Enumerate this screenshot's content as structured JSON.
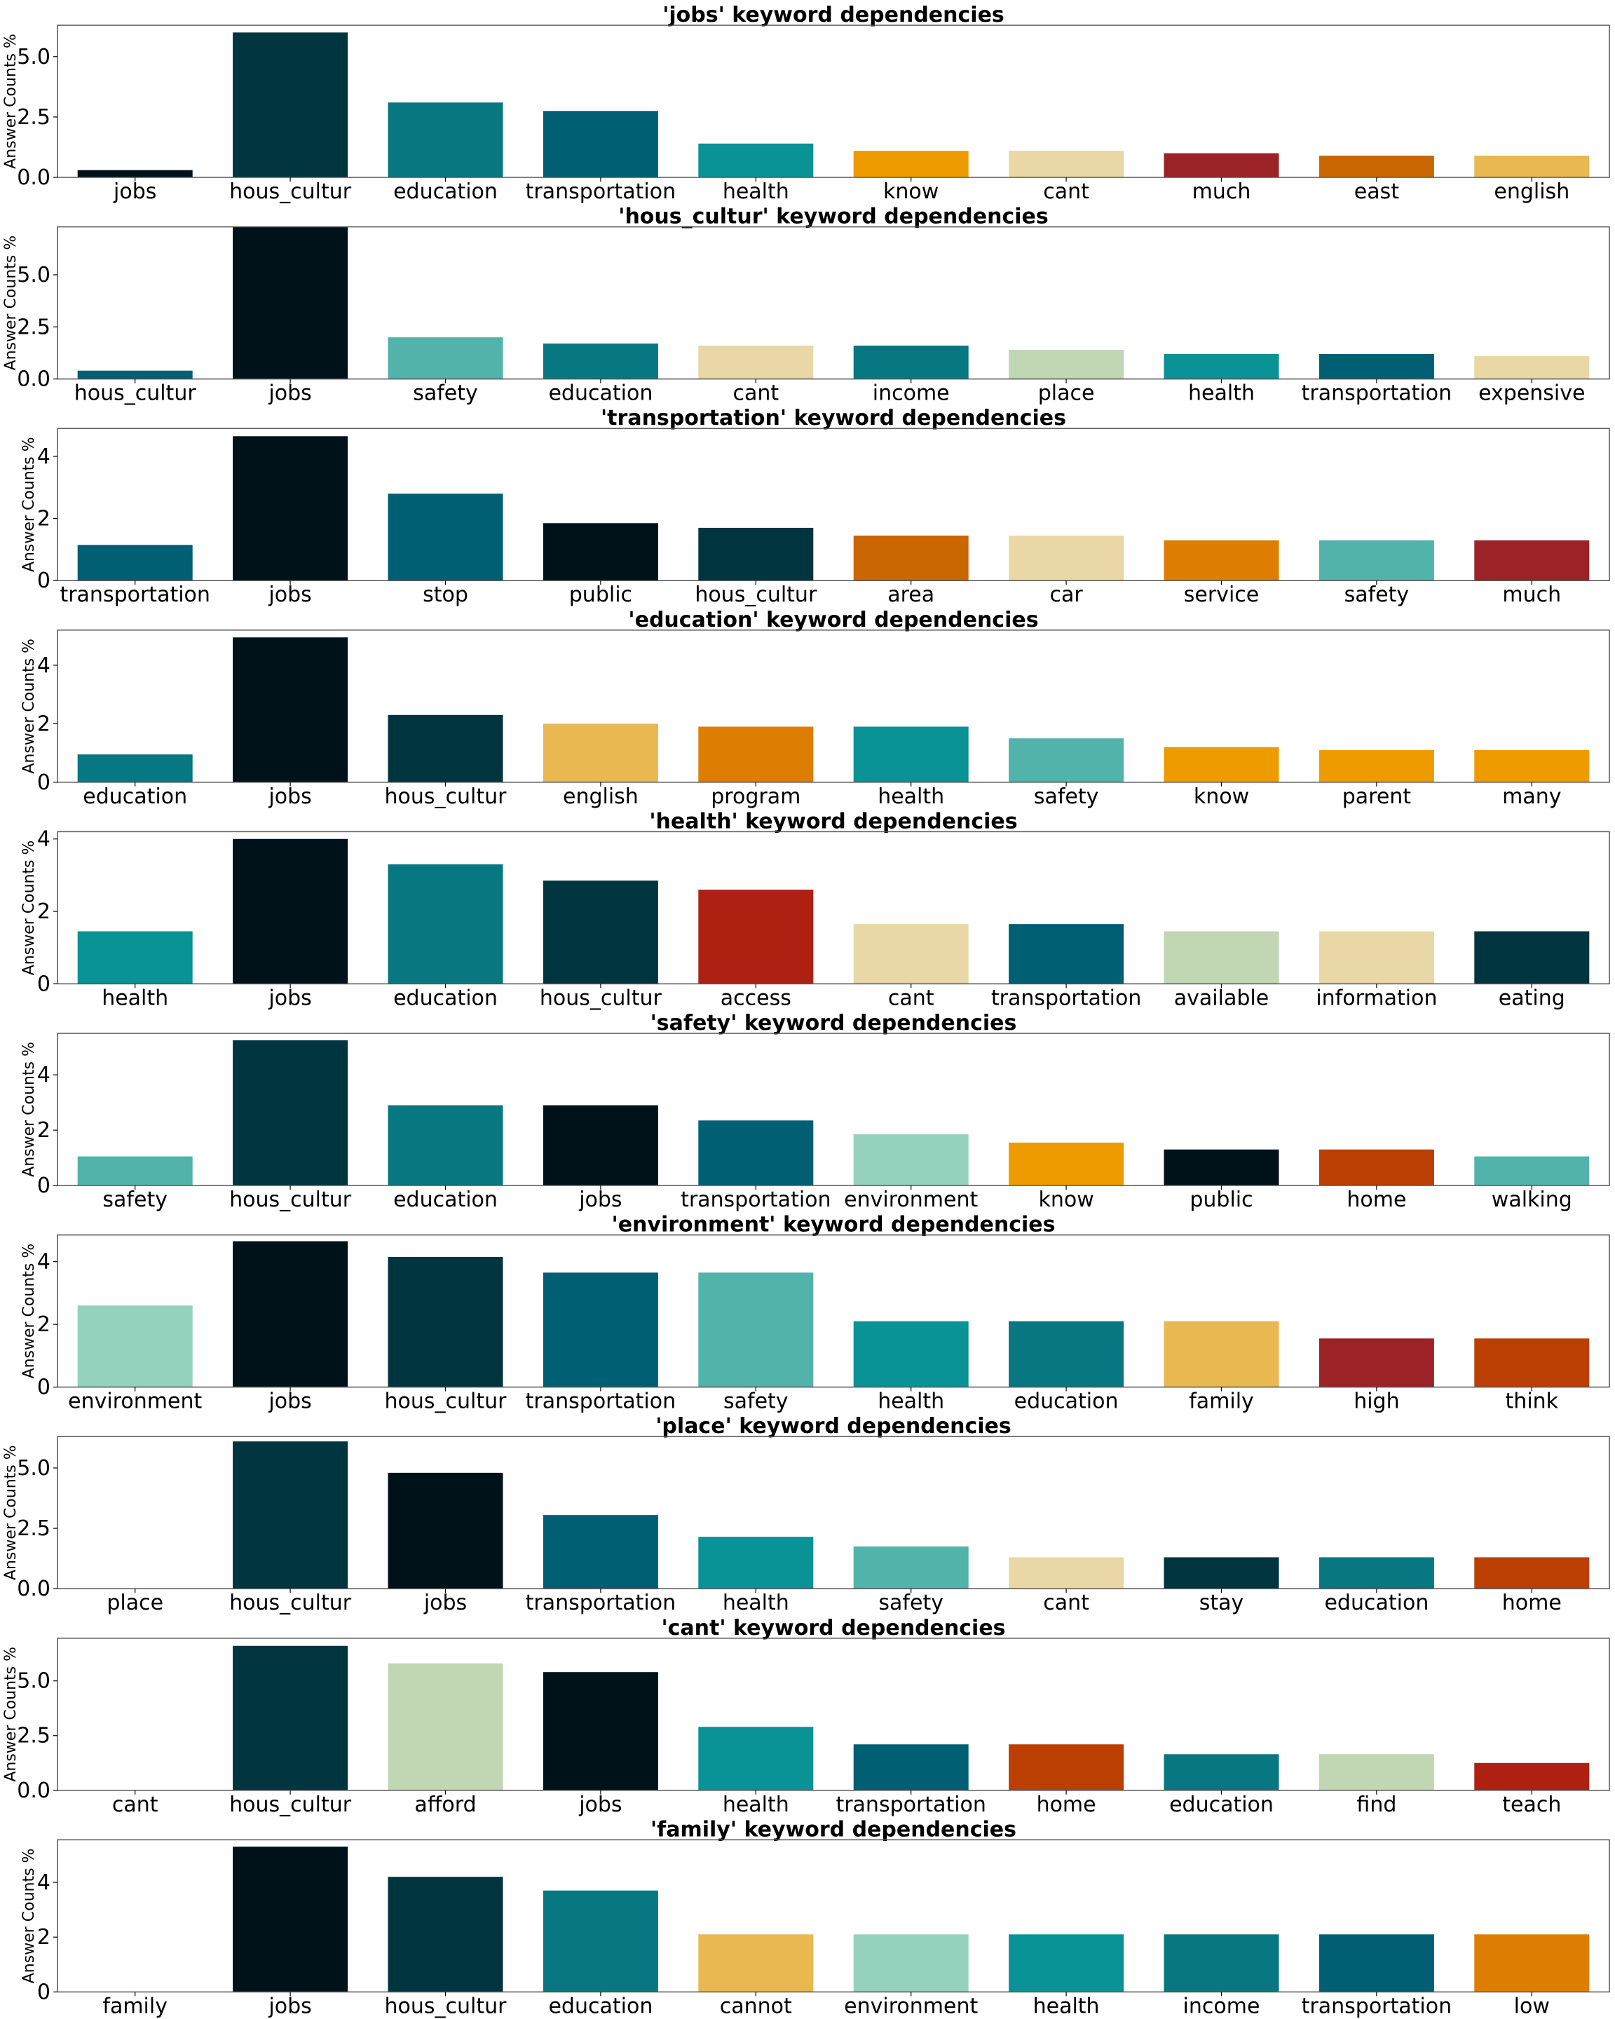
{
  "ylabel": "Answer Counts %",
  "chart_data": [
    {
      "type": "bar",
      "title": "'jobs' keyword dependencies",
      "ylabel": "Answer Counts %",
      "ylim": [
        0,
        6.3
      ],
      "yticks": [
        0.0,
        2.5,
        5.0
      ],
      "ytick_labels": [
        "0.0",
        "2.5",
        "5.0"
      ],
      "categories": [
        "jobs",
        "hous_cultur",
        "education",
        "transportation",
        "health",
        "know",
        "cant",
        "much",
        "east",
        "english"
      ],
      "values": [
        0.3,
        6.0,
        3.1,
        2.75,
        1.4,
        1.1,
        1.1,
        1.0,
        0.9,
        0.9
      ],
      "colors": [
        "#001219",
        "#003540",
        "#077782",
        "#005f73",
        "#0a9396",
        "#ee9b00",
        "#e9d8a6",
        "#9b2226",
        "#ca6702",
        "#e9b850"
      ]
    },
    {
      "type": "bar",
      "title": "'hous_cultur' keyword dependencies",
      "ylabel": "Answer Counts %",
      "ylim": [
        0,
        7.3
      ],
      "yticks": [
        0.0,
        2.5,
        5.0
      ],
      "ytick_labels": [
        "0.0",
        "2.5",
        "5.0"
      ],
      "categories": [
        "hous_cultur",
        "jobs",
        "safety",
        "education",
        "cant",
        "income",
        "place",
        "health",
        "transportation",
        "expensive"
      ],
      "values": [
        0.4,
        7.3,
        2.0,
        1.7,
        1.6,
        1.6,
        1.4,
        1.2,
        1.2,
        1.1
      ],
      "colors": [
        "#005f73",
        "#001219",
        "#52b3aa",
        "#077782",
        "#e9d8a6",
        "#077782",
        "#c1d6b3",
        "#0a9396",
        "#005f73",
        "#e9d8a6"
      ]
    },
    {
      "type": "bar",
      "title": "'transportation' keyword dependencies",
      "ylabel": "Answer Counts %",
      "ylim": [
        0,
        4.9
      ],
      "yticks": [
        0,
        2,
        4
      ],
      "ytick_labels": [
        "0",
        "2",
        "4"
      ],
      "categories": [
        "transportation",
        "jobs",
        "stop",
        "public",
        "hous_cultur",
        "area",
        "car",
        "service",
        "safety",
        "much"
      ],
      "values": [
        1.15,
        4.65,
        2.8,
        1.85,
        1.7,
        1.45,
        1.45,
        1.3,
        1.3,
        1.3
      ],
      "colors": [
        "#005f73",
        "#001219",
        "#005f73",
        "#001219",
        "#003540",
        "#ca6702",
        "#e9d8a6",
        "#dd7e02",
        "#52b3aa",
        "#9b2226"
      ]
    },
    {
      "type": "bar",
      "title": "'education' keyword dependencies",
      "ylabel": "Answer Counts %",
      "ylim": [
        0,
        5.2
      ],
      "yticks": [
        0,
        2,
        4
      ],
      "ytick_labels": [
        "0",
        "2",
        "4"
      ],
      "categories": [
        "education",
        "jobs",
        "hous_cultur",
        "english",
        "program",
        "health",
        "safety",
        "know",
        "parent",
        "many"
      ],
      "values": [
        0.95,
        4.95,
        2.3,
        2.0,
        1.9,
        1.9,
        1.5,
        1.2,
        1.1,
        1.1
      ],
      "colors": [
        "#077782",
        "#001219",
        "#003540",
        "#e9b850",
        "#dd7e02",
        "#0a9396",
        "#52b3aa",
        "#ee9b00",
        "#ee9b00",
        "#ee9b00"
      ]
    },
    {
      "type": "bar",
      "title": "'health' keyword dependencies",
      "ylabel": "Answer Counts %",
      "ylim": [
        0,
        4.2
      ],
      "yticks": [
        0,
        2,
        4
      ],
      "ytick_labels": [
        "0",
        "2",
        "4"
      ],
      "categories": [
        "health",
        "jobs",
        "education",
        "hous_cultur",
        "access",
        "cant",
        "transportation",
        "available",
        "information",
        "eating"
      ],
      "values": [
        1.45,
        4.0,
        3.3,
        2.85,
        2.6,
        1.65,
        1.65,
        1.45,
        1.45,
        1.45
      ],
      "colors": [
        "#0a9396",
        "#001219",
        "#077782",
        "#003540",
        "#ae2012",
        "#e9d8a6",
        "#005f73",
        "#c1d6b3",
        "#e9d8a6",
        "#003540"
      ]
    },
    {
      "type": "bar",
      "title": "'safety' keyword dependencies",
      "ylabel": "Answer Counts %",
      "ylim": [
        0,
        5.5
      ],
      "yticks": [
        0,
        2,
        4
      ],
      "ytick_labels": [
        "0",
        "2",
        "4"
      ],
      "categories": [
        "safety",
        "hous_cultur",
        "education",
        "jobs",
        "transportation",
        "environment",
        "know",
        "public",
        "home",
        "walking"
      ],
      "values": [
        1.05,
        5.25,
        2.9,
        2.9,
        2.35,
        1.85,
        1.55,
        1.3,
        1.3,
        1.05
      ],
      "colors": [
        "#52b3aa",
        "#003540",
        "#077782",
        "#001219",
        "#005f73",
        "#94d2bd",
        "#ee9b00",
        "#001219",
        "#bb3e03",
        "#52b3aa"
      ]
    },
    {
      "type": "bar",
      "title": "'environment' keyword dependencies",
      "ylabel": "Answer Counts %",
      "ylim": [
        0,
        4.85
      ],
      "yticks": [
        0,
        2,
        4
      ],
      "ytick_labels": [
        "0",
        "2",
        "4"
      ],
      "categories": [
        "environment",
        "jobs",
        "hous_cultur",
        "transportation",
        "safety",
        "health",
        "education",
        "family",
        "high",
        "think"
      ],
      "values": [
        2.6,
        4.65,
        4.15,
        3.65,
        3.65,
        2.1,
        2.1,
        2.1,
        1.55,
        1.55
      ],
      "colors": [
        "#94d2bd",
        "#001219",
        "#003540",
        "#005f73",
        "#52b3aa",
        "#0a9396",
        "#077782",
        "#e9b850",
        "#9b2226",
        "#bb3e03"
      ]
    },
    {
      "type": "bar",
      "title": "'place' keyword dependencies",
      "ylabel": "Answer Counts %",
      "ylim": [
        0,
        6.3
      ],
      "yticks": [
        0.0,
        2.5,
        5.0
      ],
      "ytick_labels": [
        "0.0",
        "2.5",
        "5.0"
      ],
      "categories": [
        "place",
        "hous_cultur",
        "jobs",
        "transportation",
        "health",
        "safety",
        "cant",
        "stay",
        "education",
        "home"
      ],
      "values": [
        0,
        6.1,
        4.8,
        3.05,
        2.15,
        1.75,
        1.3,
        1.3,
        1.3,
        1.3
      ],
      "colors": [
        "#ffffff",
        "#003540",
        "#001219",
        "#005f73",
        "#0a9396",
        "#52b3aa",
        "#e9d8a6",
        "#003540",
        "#077782",
        "#bb3e03"
      ]
    },
    {
      "type": "bar",
      "title": "'cant' keyword dependencies",
      "ylabel": "Answer Counts %",
      "ylim": [
        0,
        6.95
      ],
      "yticks": [
        0.0,
        2.5,
        5.0
      ],
      "ytick_labels": [
        "0.0",
        "2.5",
        "5.0"
      ],
      "categories": [
        "cant",
        "hous_cultur",
        "afford",
        "jobs",
        "health",
        "transportation",
        "home",
        "education",
        "find",
        "teach"
      ],
      "values": [
        0,
        6.6,
        5.8,
        5.4,
        2.9,
        2.1,
        2.1,
        1.65,
        1.65,
        1.25
      ],
      "colors": [
        "#ffffff",
        "#003540",
        "#c1d6b3",
        "#001219",
        "#0a9396",
        "#005f73",
        "#bb3e03",
        "#077782",
        "#c1d6b3",
        "#ae2012"
      ]
    },
    {
      "type": "bar",
      "title": "'family' keyword dependencies",
      "ylabel": "Answer Counts %",
      "ylim": [
        0,
        5.55
      ],
      "yticks": [
        0,
        2,
        4
      ],
      "ytick_labels": [
        "0",
        "2",
        "4"
      ],
      "categories": [
        "family",
        "jobs",
        "hous_cultur",
        "education",
        "cannot",
        "environment",
        "health",
        "income",
        "transportation",
        "low"
      ],
      "values": [
        0,
        5.3,
        4.2,
        3.7,
        2.1,
        2.1,
        2.1,
        2.1,
        2.1,
        2.1
      ],
      "colors": [
        "#ffffff",
        "#001219",
        "#003540",
        "#077782",
        "#e9b850",
        "#94d2bd",
        "#0a9396",
        "#077782",
        "#005f73",
        "#dd7e02"
      ]
    }
  ]
}
